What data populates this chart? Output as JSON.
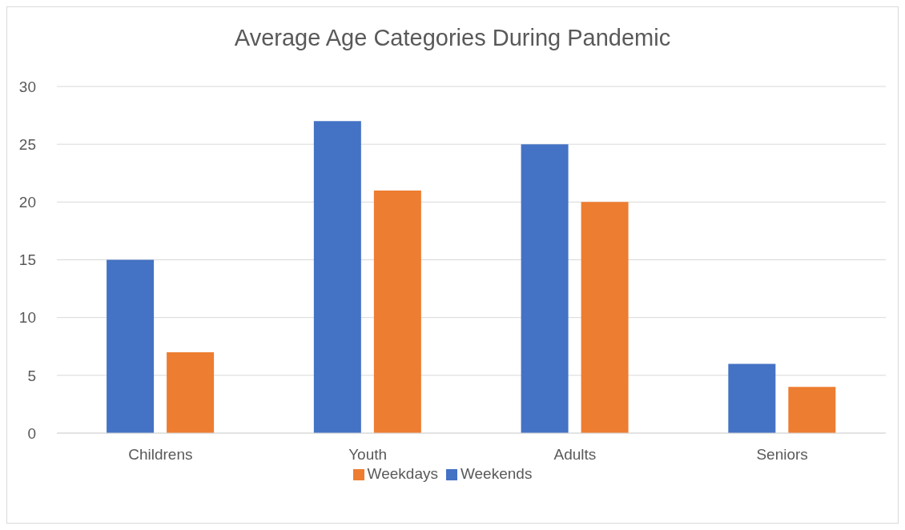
{
  "chart_data": {
    "type": "bar",
    "title": "Average Age Categories During Pandemic",
    "categories": [
      "Childrens",
      "Youth",
      "Adults",
      "Seniors"
    ],
    "series": [
      {
        "name": "Weekends",
        "color": "#4472c4",
        "values": [
          15,
          27,
          25,
          6
        ]
      },
      {
        "name": "Weekdays",
        "color": "#ed7d31",
        "values": [
          7,
          21,
          20,
          4
        ]
      }
    ],
    "ylim": [
      0,
      30
    ],
    "yticks": [
      0,
      5,
      10,
      15,
      20,
      25,
      30
    ],
    "grid": "y",
    "legend": "bottom"
  }
}
